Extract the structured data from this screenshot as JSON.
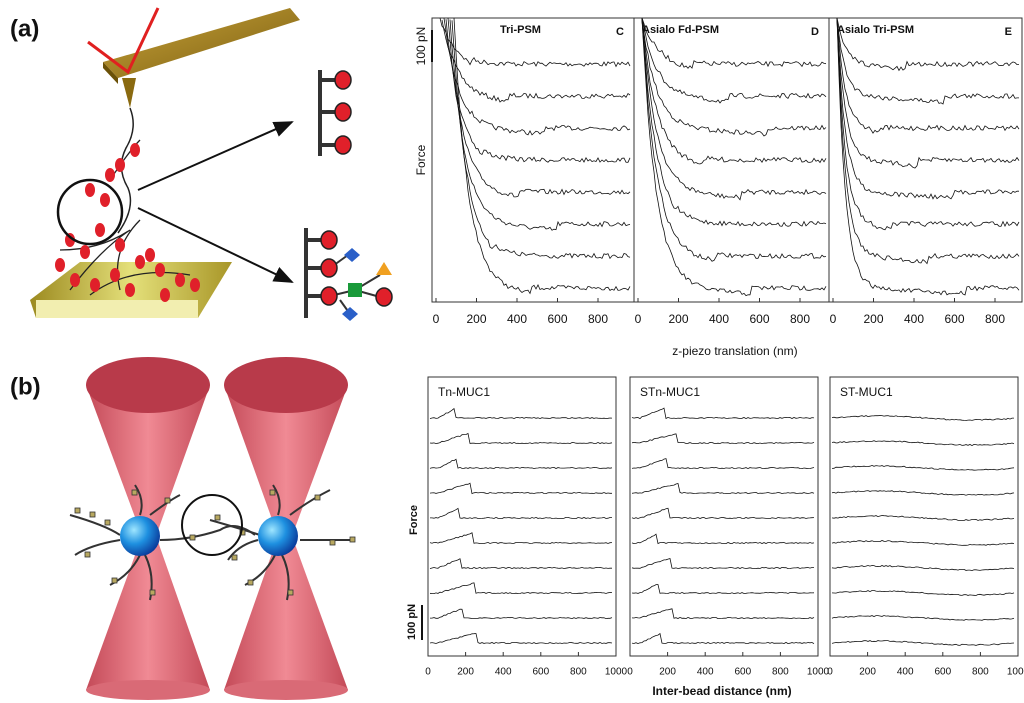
{
  "panel_a": {
    "label": "(a)",
    "afm": {
      "panels": [
        {
          "title": "Tri-PSM",
          "tag": "C"
        },
        {
          "title": "Asialo Fd-PSM",
          "tag": "D"
        },
        {
          "title": "Asialo Tri-PSM",
          "tag": "E"
        }
      ],
      "x_ticks": [
        0,
        200,
        400,
        600,
        800
      ],
      "y_label": "Force",
      "scale_bar": "100 pN",
      "x_label": "z-piezo translation (nm)"
    }
  },
  "panel_b": {
    "label": "(b)",
    "tweezers": {
      "panels": [
        {
          "title": "Tn-MUC1"
        },
        {
          "title": "STn-MUC1"
        },
        {
          "title": "ST-MUC1"
        }
      ],
      "x_ticks": [
        0,
        200,
        400,
        600,
        800,
        1000
      ],
      "y_label": "Force",
      "scale_bar": "100 pN",
      "x_label": "Inter-bead distance (nm)"
    }
  }
}
